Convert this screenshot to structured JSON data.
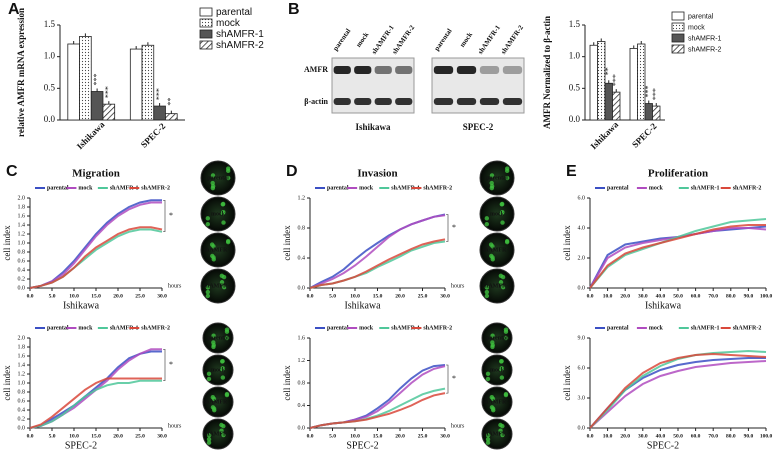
{
  "blot": {
    "lanes": [
      "parental",
      "mock",
      "shAMFR-1",
      "shAMFR-2"
    ],
    "rows": [
      "AMFR",
      "β-actin"
    ],
    "groups": [
      "Ishikawa",
      "SPEC-2"
    ]
  },
  "chart_data": [
    {
      "type": "bar",
      "panel": "A",
      "ylabel": "relative AMFR mRNA expression",
      "categories": [
        "Ishikawa",
        "SPEC-2"
      ],
      "ylim": [
        0,
        1.5
      ],
      "yticks": [
        {
          "value": 0,
          "label": "0.0"
        },
        0.5,
        {
          "value": 1,
          "label": "1.0"
        },
        1.5
      ],
      "legend": "right",
      "series": [
        {
          "name": "parental",
          "pattern": "plain",
          "color": "#ffffff",
          "values": [
            1.2,
            1.12
          ]
        },
        {
          "name": "mock",
          "pattern": "dots",
          "color": "#ffffff",
          "values": [
            1.32,
            1.18
          ]
        },
        {
          "name": "shAMFR-1",
          "pattern": "solid",
          "color": "#555555",
          "values": [
            0.45,
            0.22
          ],
          "significance": [
            "***",
            "***"
          ]
        },
        {
          "name": "shAMFR-2",
          "pattern": "hatch",
          "color": "#ffffff",
          "values": [
            0.25,
            0.1
          ],
          "significance": [
            "***",
            "**"
          ]
        }
      ]
    },
    {
      "type": "bar",
      "panel": "B",
      "ylabel": "AMFR Normalized to β-actin",
      "categories": [
        "Ishikawa",
        "SPEC-2"
      ],
      "ylim": [
        0,
        1.5
      ],
      "yticks": [
        {
          "value": 0,
          "label": "0.0"
        },
        0.5,
        {
          "value": 1,
          "label": "1.0"
        },
        1.5
      ],
      "legend": "right",
      "series": [
        {
          "name": "parental",
          "pattern": "plain",
          "color": "#ffffff",
          "values": [
            1.18,
            1.13
          ]
        },
        {
          "name": "mock",
          "pattern": "dots",
          "color": "#ffffff",
          "values": [
            1.24,
            1.2
          ]
        },
        {
          "name": "shAMFR-1",
          "pattern": "solid",
          "color": "#555555",
          "values": [
            0.58,
            0.26
          ],
          "significance": [
            "**",
            "***"
          ]
        },
        {
          "name": "shAMFR-2",
          "pattern": "hatch",
          "color": "#ffffff",
          "values": [
            0.44,
            0.22
          ],
          "significance": [
            "***",
            "***"
          ]
        }
      ]
    },
    {
      "type": "line",
      "panel": "C",
      "title": "Migration",
      "ylabel": "cell index",
      "xlabel": "Ishikawa",
      "x_unit": "hours",
      "annotation": "*",
      "images": [
        "parental",
        "mock",
        "shAMFR-1",
        "shAMFR-2"
      ],
      "x": [
        0,
        2.5,
        5,
        7.5,
        10,
        12.5,
        15,
        17.5,
        20,
        22.5,
        25,
        27.5,
        30
      ],
      "xlim": [
        0,
        30
      ],
      "xticks": [
        {
          "value": 0,
          "label": "0.0"
        },
        {
          "value": 5,
          "label": "5.0"
        },
        {
          "value": 10,
          "label": "10.0"
        },
        {
          "value": 15,
          "label": "15.0"
        },
        {
          "value": 20,
          "label": "20.0"
        },
        {
          "value": 25,
          "label": "25.0"
        },
        {
          "value": 30,
          "label": "30.0"
        }
      ],
      "ylim": [
        0,
        2
      ],
      "yticks": [
        {
          "value": 0,
          "label": "0.0"
        },
        0.2,
        0.4,
        0.6,
        0.8,
        {
          "value": 1,
          "label": "1.0"
        },
        1.2,
        1.4,
        1.6,
        1.8,
        {
          "value": 2,
          "label": "2.0"
        }
      ],
      "series": [
        {
          "name": "parental",
          "color": "#3b4fc4",
          "values": [
            0,
            0.05,
            0.15,
            0.35,
            0.6,
            0.9,
            1.2,
            1.45,
            1.65,
            1.8,
            1.9,
            1.95,
            1.95
          ]
        },
        {
          "name": "mock",
          "color": "#b04cc0",
          "values": [
            0,
            0.05,
            0.15,
            0.3,
            0.55,
            0.85,
            1.15,
            1.4,
            1.6,
            1.75,
            1.85,
            1.9,
            1.9
          ]
        },
        {
          "name": "shAMFR-1",
          "color": "#4fc79a",
          "values": [
            0,
            0.05,
            0.12,
            0.25,
            0.45,
            0.65,
            0.85,
            1.0,
            1.15,
            1.25,
            1.3,
            1.3,
            1.25
          ]
        },
        {
          "name": "shAMFR-2",
          "color": "#d9483b",
          "values": [
            0,
            0.05,
            0.12,
            0.25,
            0.45,
            0.7,
            0.9,
            1.05,
            1.2,
            1.3,
            1.35,
            1.35,
            1.3
          ]
        }
      ]
    },
    {
      "type": "line",
      "ylabel": "cell index",
      "xlabel": "SPEC-2",
      "x_unit": "hours",
      "annotation": "*",
      "images": [
        "parental",
        "mock",
        "shAMFR-1",
        "shAMFR-2"
      ],
      "x": [
        0,
        2.5,
        5,
        7.5,
        10,
        12.5,
        15,
        17.5,
        20,
        22.5,
        25,
        27.5,
        30
      ],
      "xlim": [
        0,
        30
      ],
      "xticks": [
        {
          "value": 0,
          "label": "0.0"
        },
        {
          "value": 5,
          "label": "5.0"
        },
        {
          "value": 10,
          "label": "10.0"
        },
        {
          "value": 15,
          "label": "15.0"
        },
        {
          "value": 20,
          "label": "20.0"
        },
        {
          "value": 25,
          "label": "25.0"
        },
        {
          "value": 30,
          "label": "30.0"
        }
      ],
      "ylim": [
        0,
        2
      ],
      "yticks": [
        {
          "value": 0,
          "label": "0.0"
        },
        0.2,
        0.4,
        0.6,
        0.8,
        {
          "value": 1,
          "label": "1.0"
        },
        1.2,
        1.4,
        1.6,
        1.8,
        {
          "value": 2,
          "label": "2.0"
        }
      ],
      "series": [
        {
          "name": "parental",
          "color": "#3b4fc4",
          "values": [
            0,
            0.05,
            0.2,
            0.35,
            0.5,
            0.7,
            0.9,
            1.1,
            1.35,
            1.55,
            1.65,
            1.7,
            1.7
          ]
        },
        {
          "name": "mock",
          "color": "#b04cc0",
          "values": [
            0,
            0.05,
            0.15,
            0.3,
            0.45,
            0.65,
            0.85,
            1.05,
            1.3,
            1.5,
            1.65,
            1.75,
            1.75
          ]
        },
        {
          "name": "shAMFR-1",
          "color": "#4fc79a",
          "values": [
            0,
            0.05,
            0.15,
            0.3,
            0.5,
            0.7,
            0.85,
            0.95,
            1.0,
            1.0,
            1.05,
            1.05,
            1.05
          ]
        },
        {
          "name": "shAMFR-2",
          "color": "#d9483b",
          "values": [
            0,
            0.08,
            0.25,
            0.45,
            0.65,
            0.85,
            1.0,
            1.1,
            1.1,
            1.1,
            1.1,
            1.1,
            1.1
          ]
        }
      ]
    },
    {
      "type": "line",
      "panel": "D",
      "title": "Invasion",
      "ylabel": "cell index",
      "xlabel": "Ishikawa",
      "x_unit": "hours",
      "annotation": "*",
      "images": [
        "parental",
        "mock",
        "shAMFR-1",
        "shAMFR-2"
      ],
      "x": [
        0,
        2.5,
        5,
        7.5,
        10,
        12.5,
        15,
        17.5,
        20,
        22.5,
        25,
        27.5,
        30
      ],
      "xlim": [
        0,
        30
      ],
      "xticks": [
        {
          "value": 0,
          "label": "0.0"
        },
        {
          "value": 5,
          "label": "5.0"
        },
        {
          "value": 10,
          "label": "10.0"
        },
        {
          "value": 15,
          "label": "15.0"
        },
        {
          "value": 20,
          "label": "20.0"
        },
        {
          "value": 25,
          "label": "25.0"
        },
        {
          "value": 30,
          "label": "30.0"
        }
      ],
      "ylim": [
        0,
        1.2
      ],
      "yticks": [
        {
          "value": 0,
          "label": "0.0"
        },
        0.4,
        0.8,
        1.2
      ],
      "series": [
        {
          "name": "parental",
          "color": "#3b4fc4",
          "values": [
            0,
            0.08,
            0.15,
            0.25,
            0.38,
            0.5,
            0.6,
            0.7,
            0.78,
            0.85,
            0.9,
            0.95,
            0.98
          ]
        },
        {
          "name": "mock",
          "color": "#b04cc0",
          "values": [
            0,
            0.06,
            0.12,
            0.2,
            0.3,
            0.42,
            0.55,
            0.68,
            0.78,
            0.85,
            0.9,
            0.95,
            0.97
          ]
        },
        {
          "name": "shAMFR-1",
          "color": "#4fc79a",
          "values": [
            0,
            0.04,
            0.06,
            0.1,
            0.15,
            0.2,
            0.28,
            0.35,
            0.42,
            0.5,
            0.55,
            0.6,
            0.62
          ]
        },
        {
          "name": "shAMFR-2",
          "color": "#d9483b",
          "values": [
            0,
            0.04,
            0.06,
            0.1,
            0.15,
            0.22,
            0.3,
            0.38,
            0.45,
            0.52,
            0.58,
            0.62,
            0.65
          ]
        }
      ]
    },
    {
      "type": "line",
      "ylabel": "cell index",
      "xlabel": "SPEC-2",
      "x_unit": "hours",
      "annotation": "*",
      "images": [
        "parental",
        "mock",
        "shAMFR-1",
        "shAMFR-2"
      ],
      "x": [
        0,
        2.5,
        5,
        7.5,
        10,
        12.5,
        15,
        17.5,
        20,
        22.5,
        25,
        27.5,
        30
      ],
      "xlim": [
        0,
        30
      ],
      "xticks": [
        {
          "value": 0,
          "label": "0.0"
        },
        {
          "value": 5,
          "label": "5.0"
        },
        {
          "value": 10,
          "label": "10.0"
        },
        {
          "value": 15,
          "label": "15.0"
        },
        {
          "value": 20,
          "label": "20.0"
        },
        {
          "value": 25,
          "label": "25.0"
        },
        {
          "value": 30,
          "label": "30.0"
        }
      ],
      "ylim": [
        0,
        1.6
      ],
      "yticks": [
        {
          "value": 0,
          "label": "0.0"
        },
        0.4,
        0.8,
        1.2,
        1.6
      ],
      "series": [
        {
          "name": "parental",
          "color": "#3b4fc4",
          "values": [
            0,
            0.05,
            0.08,
            0.1,
            0.15,
            0.22,
            0.35,
            0.5,
            0.7,
            0.88,
            1.02,
            1.1,
            1.12
          ]
        },
        {
          "name": "mock",
          "color": "#b04cc0",
          "values": [
            0,
            0.05,
            0.08,
            0.1,
            0.15,
            0.2,
            0.3,
            0.45,
            0.62,
            0.8,
            0.95,
            1.05,
            1.1
          ]
        },
        {
          "name": "shAMFR-1",
          "color": "#4fc79a",
          "values": [
            0,
            0.05,
            0.08,
            0.1,
            0.12,
            0.16,
            0.22,
            0.3,
            0.4,
            0.5,
            0.6,
            0.66,
            0.7
          ]
        },
        {
          "name": "shAMFR-2",
          "color": "#d9483b",
          "values": [
            0,
            0.05,
            0.08,
            0.1,
            0.12,
            0.15,
            0.2,
            0.25,
            0.32,
            0.4,
            0.5,
            0.58,
            0.62
          ]
        }
      ]
    },
    {
      "type": "line",
      "panel": "E",
      "title": "Proliferation",
      "ylabel": "cell index",
      "xlabel": "Ishikawa",
      "x": [
        0,
        10,
        20,
        30,
        40,
        50,
        60,
        70,
        80,
        90,
        100
      ],
      "xlim": [
        0,
        100
      ],
      "xticks": [
        {
          "value": 0,
          "label": "0.0"
        },
        {
          "value": 10,
          "label": "10.0"
        },
        {
          "value": 20,
          "label": "20.0"
        },
        {
          "value": 30,
          "label": "30.0"
        },
        {
          "value": 40,
          "label": "40.0"
        },
        {
          "value": 50,
          "label": "50.0"
        },
        {
          "value": 60,
          "label": "60.0"
        },
        {
          "value": 70,
          "label": "70.0"
        },
        {
          "value": 80,
          "label": "80.0"
        },
        {
          "value": 90,
          "label": "90.0"
        },
        {
          "value": 100,
          "label": "100.0"
        }
      ],
      "ylim": [
        0,
        6
      ],
      "yticks": [
        {
          "value": 0,
          "label": "0.0"
        },
        {
          "value": 2,
          "label": "2.0"
        },
        {
          "value": 4,
          "label": "4.0"
        },
        {
          "value": 6,
          "label": "6.0"
        }
      ],
      "series": [
        {
          "name": "parental",
          "color": "#3b4fc4",
          "values": [
            0,
            2.2,
            2.9,
            3.1,
            3.3,
            3.4,
            3.6,
            3.8,
            3.9,
            4.0,
            4.1
          ]
        },
        {
          "name": "mock",
          "color": "#b04cc0",
          "values": [
            0,
            2.0,
            2.7,
            3.0,
            3.2,
            3.4,
            3.6,
            3.8,
            4.0,
            4.0,
            3.9
          ]
        },
        {
          "name": "shAMFR-1",
          "color": "#4fc79a",
          "values": [
            0,
            1.4,
            2.2,
            2.6,
            3.0,
            3.4,
            3.8,
            4.1,
            4.4,
            4.5,
            4.6
          ]
        },
        {
          "name": "shAMFR-2",
          "color": "#d9483b",
          "values": [
            0,
            1.5,
            2.3,
            2.7,
            3.0,
            3.3,
            3.6,
            3.9,
            4.1,
            4.2,
            4.2
          ]
        }
      ]
    },
    {
      "type": "line",
      "ylabel": "cell index",
      "xlabel": "SPEC-2",
      "x": [
        0,
        10,
        20,
        30,
        40,
        50,
        60,
        70,
        80,
        90,
        100
      ],
      "xlim": [
        0,
        100
      ],
      "xticks": [
        {
          "value": 0,
          "label": "0.0"
        },
        {
          "value": 10,
          "label": "10.0"
        },
        {
          "value": 20,
          "label": "20.0"
        },
        {
          "value": 30,
          "label": "30.0"
        },
        {
          "value": 40,
          "label": "40.0"
        },
        {
          "value": 50,
          "label": "50.0"
        },
        {
          "value": 60,
          "label": "60.0"
        },
        {
          "value": 70,
          "label": "70.0"
        },
        {
          "value": 80,
          "label": "80.0"
        },
        {
          "value": 90,
          "label": "90.0"
        },
        {
          "value": 100,
          "label": "100.0"
        }
      ],
      "ylim": [
        0,
        9
      ],
      "yticks": [
        {
          "value": 0,
          "label": "0.0"
        },
        {
          "value": 3,
          "label": "3.0"
        },
        {
          "value": 6,
          "label": "6.0"
        },
        {
          "value": 9,
          "label": "9.0"
        }
      ],
      "series": [
        {
          "name": "parental",
          "color": "#3b4fc4",
          "values": [
            0,
            2.0,
            3.8,
            5.0,
            5.8,
            6.3,
            6.6,
            6.8,
            6.9,
            7.0,
            7.0
          ]
        },
        {
          "name": "mock",
          "color": "#b04cc0",
          "values": [
            0,
            1.6,
            3.2,
            4.4,
            5.2,
            5.7,
            6.1,
            6.3,
            6.5,
            6.6,
            6.7
          ]
        },
        {
          "name": "shAMFR-1",
          "color": "#4fc79a",
          "values": [
            0,
            1.8,
            3.8,
            5.2,
            6.2,
            6.9,
            7.3,
            7.5,
            7.6,
            7.7,
            7.6
          ]
        },
        {
          "name": "shAMFR-2",
          "color": "#d9483b",
          "values": [
            0,
            2.0,
            4.0,
            5.5,
            6.5,
            7.0,
            7.3,
            7.4,
            7.3,
            7.2,
            7.1
          ]
        }
      ]
    }
  ]
}
